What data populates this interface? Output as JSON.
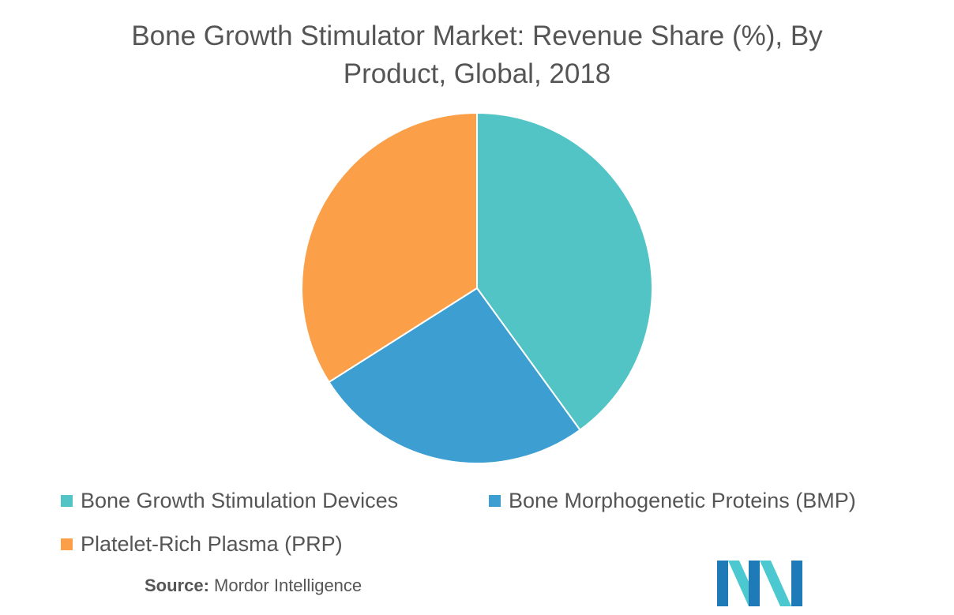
{
  "chart_data": {
    "type": "pie",
    "title_line1": "Bone Growth Stimulator Market: Revenue Share (%), By",
    "title_line2": "Product, Global, 2018",
    "slices": [
      {
        "label": "Bone Growth Stimulation Devices",
        "value": 40,
        "color": "#52C4C6"
      },
      {
        "label": "Bone Morphogenetic Proteins (BMP)",
        "value": 26,
        "color": "#3D9FD1"
      },
      {
        "label": "Platelet-Rich Plasma (PRP)",
        "value": 34,
        "color": "#FBA049"
      }
    ],
    "start": "12 o'clock",
    "direction": "clockwise",
    "legend_position": "bottom"
  },
  "source": {
    "label": "Source:",
    "text": "Mordor Intelligence"
  },
  "logo": {
    "icon": "mordor-intelligence-logo",
    "colors": [
      "#1E7BB7",
      "#4CC8D0"
    ]
  }
}
